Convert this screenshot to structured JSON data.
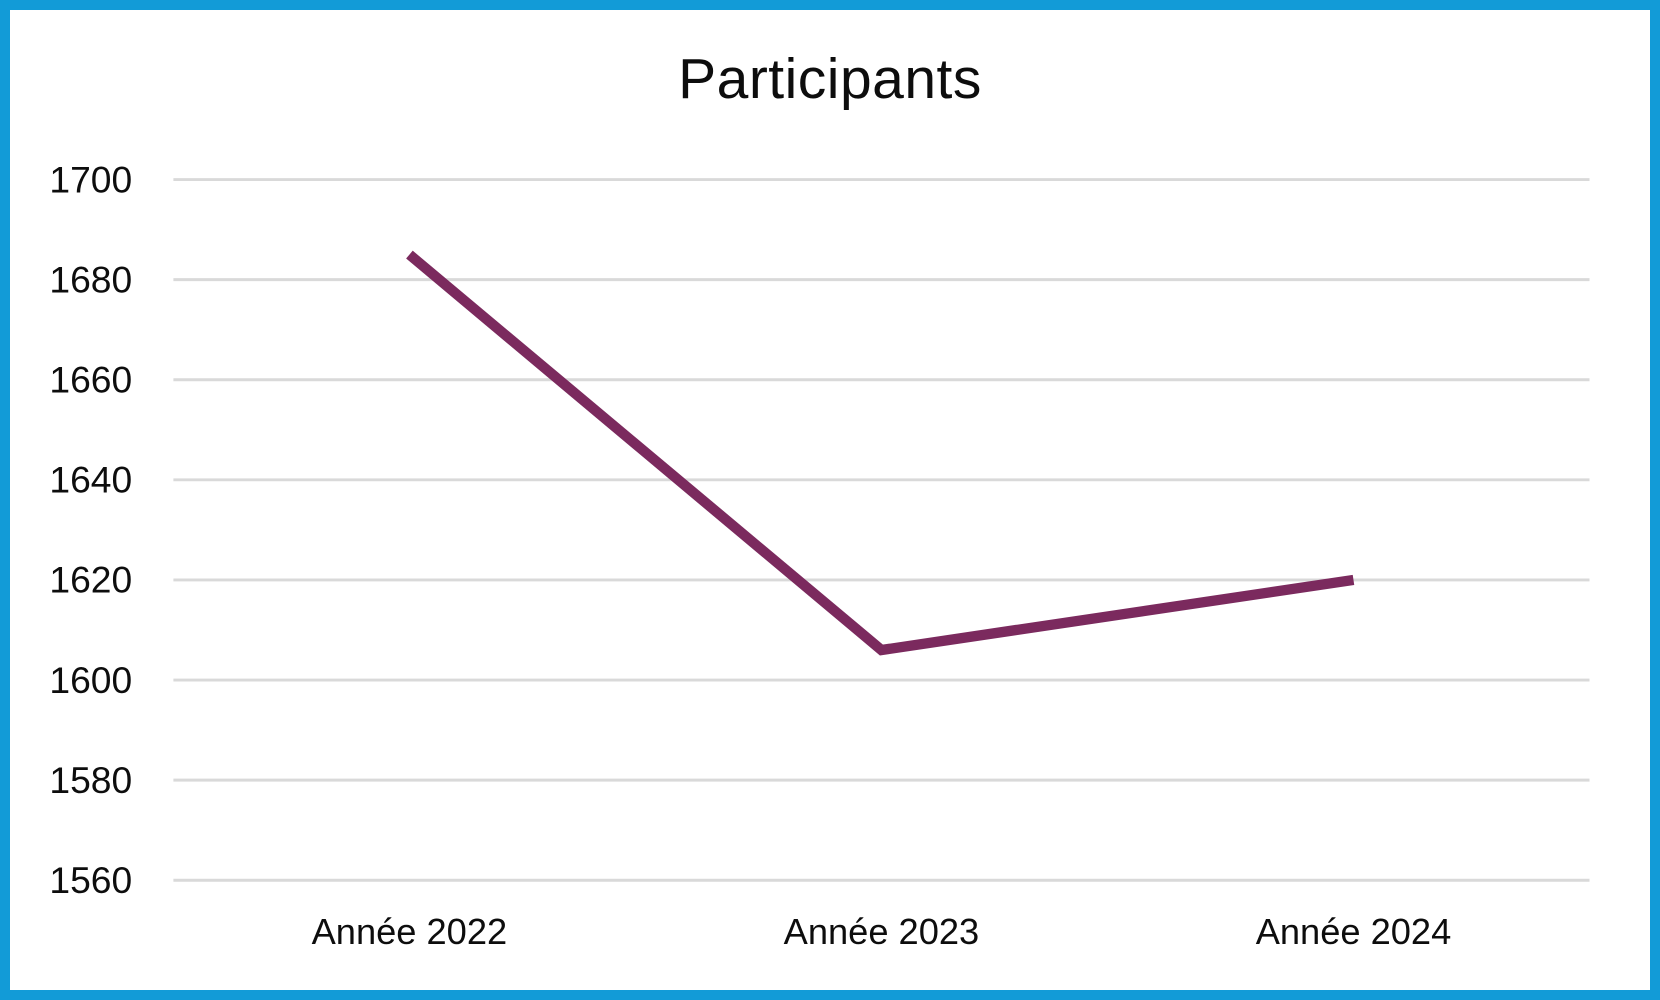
{
  "title": "Participants",
  "colors": {
    "border": "#129BD7",
    "line": "#7B2A5E",
    "gridline": "#D9D9D9",
    "text": "#0D0D0D",
    "background": "#FFFFFF"
  },
  "chart_data": {
    "type": "line",
    "title": "Participants",
    "categories": [
      "Année 2022",
      "Année 2023",
      "Année 2024"
    ],
    "series": [
      {
        "name": "Participants",
        "values": [
          1685,
          1606,
          1620
        ],
        "color": "#7B2A5E"
      }
    ],
    "xlabel": "",
    "ylabel": "",
    "ylim": [
      1560,
      1700
    ],
    "yticks": [
      1560,
      1580,
      1600,
      1620,
      1640,
      1660,
      1680,
      1700
    ],
    "grid": "horizontal",
    "legend": "none",
    "markers": "none"
  }
}
